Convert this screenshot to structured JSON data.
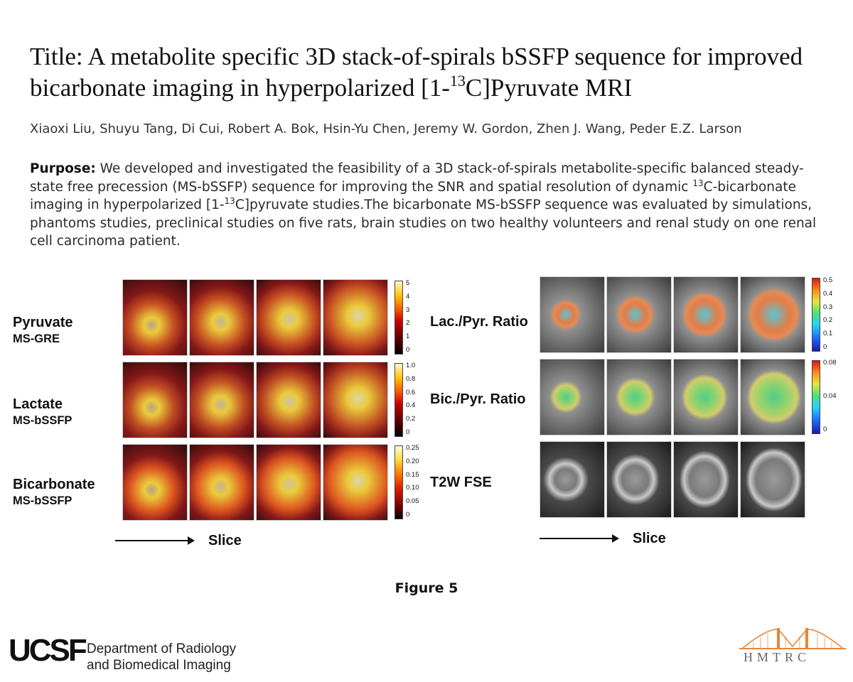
{
  "title": {
    "prefix": "Title: A metabolite specific 3D stack-of-spirals bSSFP sequence for improved bicarbonate imaging in hyperpolarized [1-",
    "superscript": "13",
    "suffix": "C]Pyruvate MRI"
  },
  "authors": "Xiaoxi Liu, Shuyu Tang, Di Cui, Robert A. Bok, Hsin-Yu Chen, Jeremy W. Gordon, Zhen J. Wang, Peder E.Z. Larson",
  "abstract": {
    "label": "Purpose:",
    "part1": " We developed and investigated the feasibility of a 3D stack-of-spirals metabolite-specific balanced steady-state free precession (MS-bSSFP) sequence for improving the SNR and spatial resolution of dynamic ",
    "sup1": "13",
    "part2": "C-bicarbonate imaging in hyperpolarized [1-",
    "sup2": "13",
    "part3": "C]pyruvate studies.The bicarbonate MS-bSSFP sequence was evaluated by simulations, phantoms studies, preclinical studies on five rats, brain studies on two healthy volunteers and renal study on one renal cell carcinoma patient."
  },
  "figure": {
    "left_rows": [
      {
        "line1": "Pyruvate",
        "line2": "MS-GRE",
        "ticks": [
          "5",
          "4",
          "3",
          "2",
          "1",
          "0"
        ]
      },
      {
        "line1": "Lactate",
        "line2": "MS-bSSFP",
        "ticks": [
          "1.0",
          "0.8",
          "0.6",
          "0.4",
          "0.2",
          "0"
        ]
      },
      {
        "line1": "Bicarbonate",
        "line2": "MS-bSSFP",
        "ticks": [
          "0.25",
          "0.20",
          "0.15",
          "0.10",
          "0.05",
          "0"
        ]
      }
    ],
    "right_rows": [
      {
        "label": "Lac./Pyr. Ratio",
        "ticks": [
          "0.5",
          "0.4",
          "0.3",
          "0.2",
          "0.1",
          "0"
        ]
      },
      {
        "label": "Bic./Pyr. Ratio",
        "ticks": [
          "0.08",
          "0.04",
          "0"
        ]
      },
      {
        "label": "T2W FSE",
        "ticks": []
      }
    ],
    "slice_label": "Slice",
    "caption": "Figure 5"
  },
  "footer": {
    "logo": "UCSF",
    "dept_line1": "Department of Radiology",
    "dept_line2": "and Biomedical Imaging",
    "hmtrc": "HMTRC"
  }
}
